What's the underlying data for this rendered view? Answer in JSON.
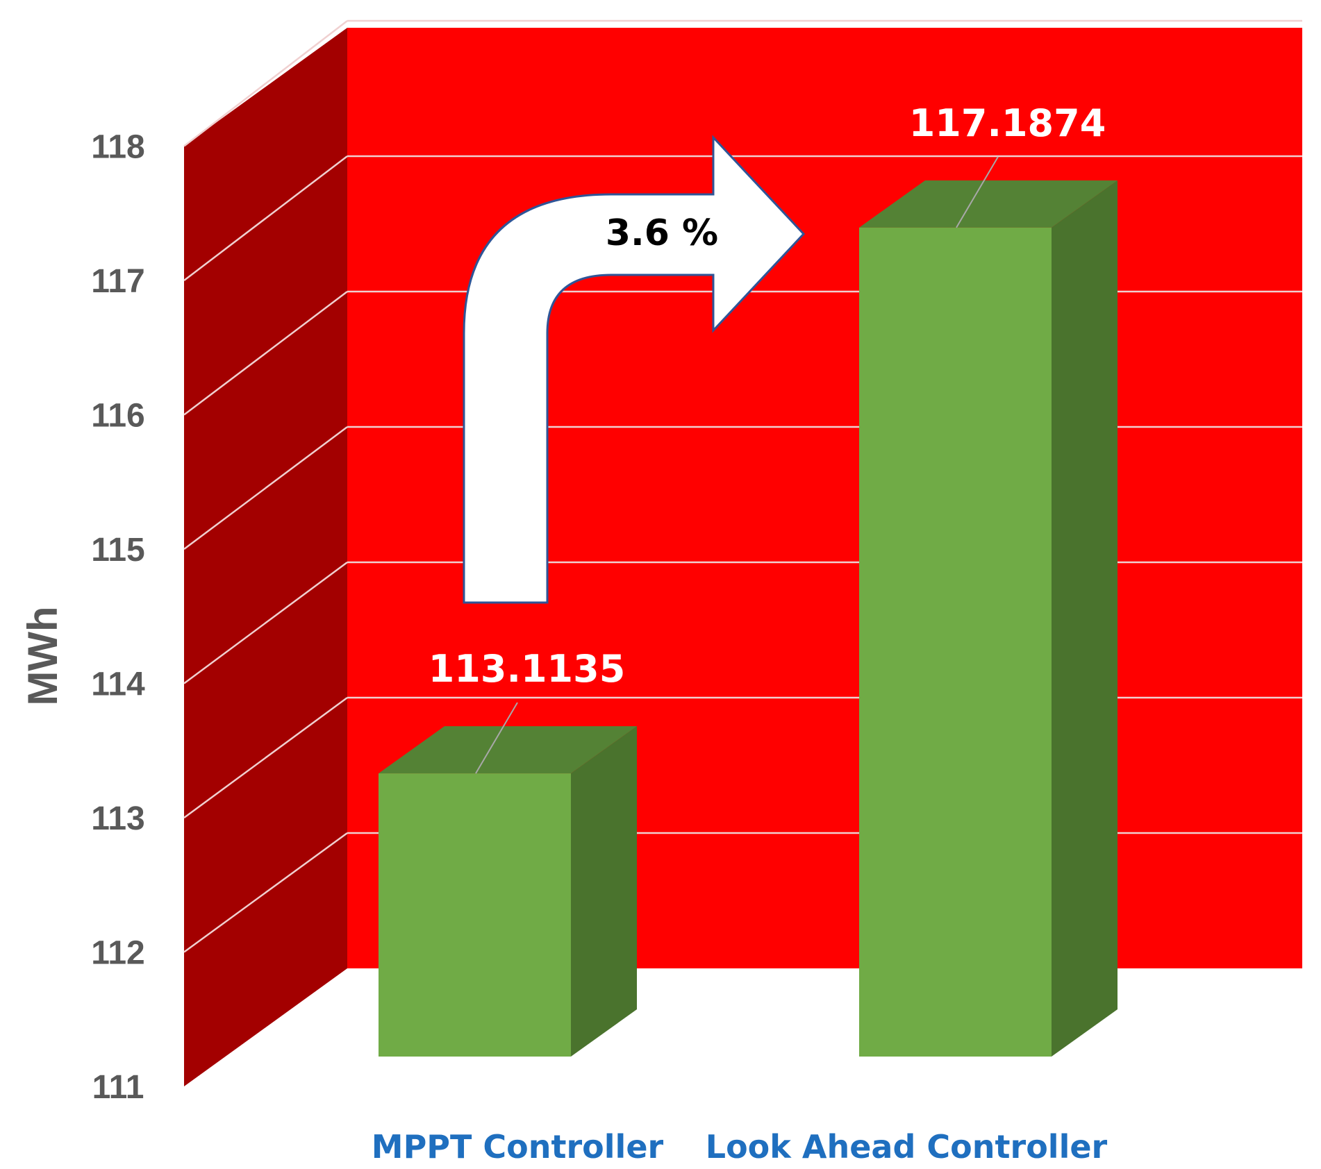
{
  "chart_data": {
    "type": "bar",
    "style": "3d-column",
    "categories": [
      "MPPT Controller",
      "Look Ahead Controller"
    ],
    "values": [
      113.1135,
      117.1874
    ],
    "value_labels": [
      "113.1135",
      "117.1874"
    ],
    "ylabel": "MWh",
    "ylim": [
      111,
      118
    ],
    "yticks": [
      "111",
      "112",
      "113",
      "114",
      "115",
      "116",
      "117",
      "118"
    ],
    "annotation": "3.6 %",
    "grid": true,
    "colors": {
      "bar_front": "#70ab46",
      "bar_top": "#548235",
      "bar_side": "#4a732d",
      "back_wall": "#ff0000",
      "side_wall": "#a30000",
      "gridline": "#f0d0d0",
      "axis_text": "#595959",
      "category_text": "#1f6fbf",
      "arrow_fill": "#ffffff",
      "arrow_stroke": "#2f5597"
    }
  }
}
